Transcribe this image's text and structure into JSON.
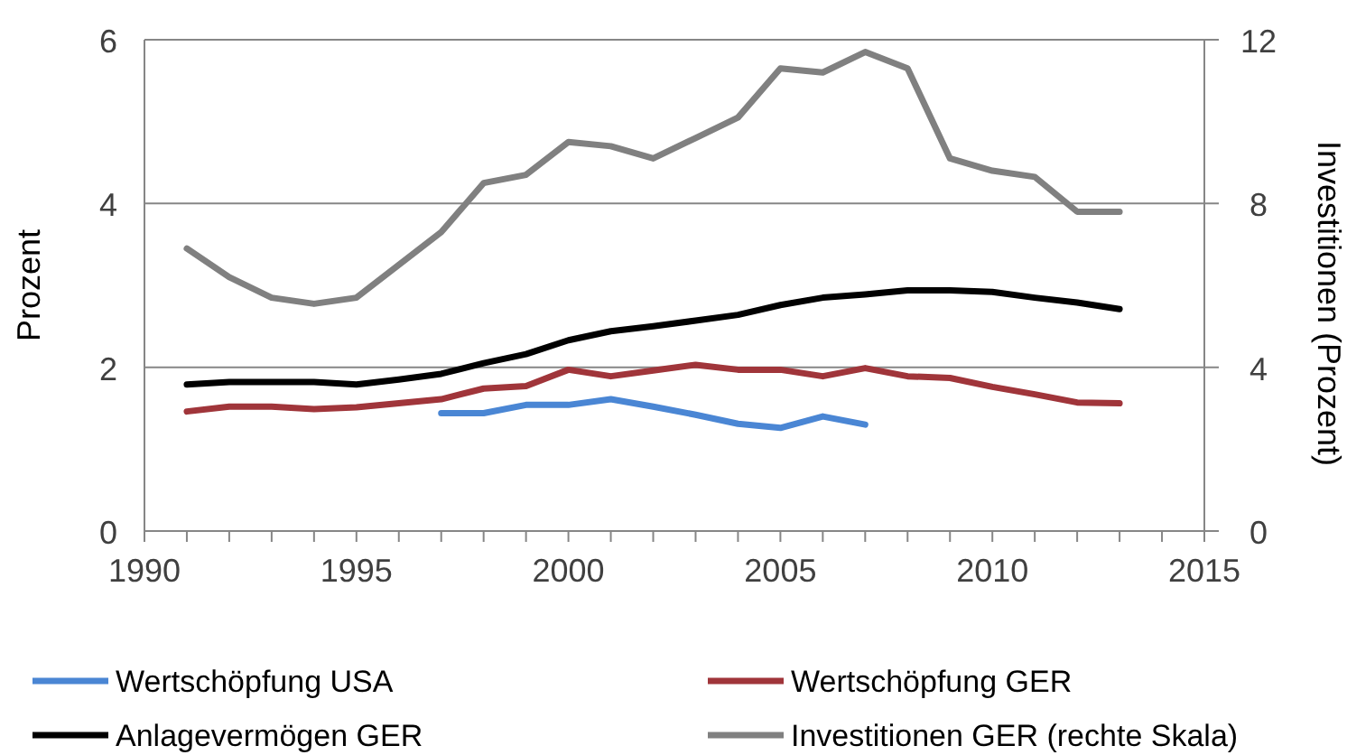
{
  "chart_data": {
    "type": "line",
    "ylabel": "Prozent",
    "y2label": "Investitionen (Prozent)",
    "x": [
      1991,
      1992,
      1993,
      1994,
      1995,
      1996,
      1997,
      1998,
      1999,
      2000,
      2001,
      2002,
      2003,
      2004,
      2005,
      2006,
      2007,
      2008,
      2009,
      2010,
      2011,
      2012,
      2013
    ],
    "xlim": [
      1990,
      2015
    ],
    "xticks": [
      1990,
      {
        "value": 1991,
        "label": null
      },
      {
        "value": 1992,
        "label": null
      },
      {
        "value": 1993,
        "label": null
      },
      {
        "value": 1994,
        "label": null
      },
      1995,
      {
        "value": 1996,
        "label": null
      },
      {
        "value": 1997,
        "label": null
      },
      {
        "value": 1998,
        "label": null
      },
      {
        "value": 1999,
        "label": null
      },
      2000,
      {
        "value": 2001,
        "label": null
      },
      {
        "value": 2002,
        "label": null
      },
      {
        "value": 2003,
        "label": null
      },
      {
        "value": 2004,
        "label": null
      },
      2005,
      {
        "value": 2006,
        "label": null
      },
      {
        "value": 2007,
        "label": null
      },
      {
        "value": 2008,
        "label": null
      },
      {
        "value": 2009,
        "label": null
      },
      2010,
      {
        "value": 2011,
        "label": null
      },
      {
        "value": 2012,
        "label": null
      },
      {
        "value": 2013,
        "label": null
      },
      {
        "value": 2014,
        "label": null
      },
      2015
    ],
    "ylim": [
      0,
      6
    ],
    "yticks": [
      0,
      2,
      4,
      6
    ],
    "y2lim": [
      0,
      12
    ],
    "y2ticks": [
      0,
      4,
      8,
      12
    ],
    "grid": "y",
    "legend": "bottom",
    "marker": "none",
    "line_style": "solid",
    "series": [
      {
        "name": "Wertschöpfung USA",
        "color": "#4a86d4",
        "values": [
          null,
          null,
          null,
          null,
          null,
          null,
          1.44,
          1.44,
          1.54,
          1.54,
          1.61,
          1.52,
          1.42,
          1.31,
          1.26,
          1.4,
          1.3,
          null,
          null,
          null,
          null,
          null,
          null
        ]
      },
      {
        "name": "Wertschöpfung GER",
        "color": "#a0353a",
        "values": [
          1.46,
          1.52,
          1.52,
          1.49,
          1.51,
          1.56,
          1.61,
          1.74,
          1.77,
          1.97,
          1.89,
          1.96,
          2.03,
          1.97,
          1.97,
          1.89,
          1.99,
          1.89,
          1.87,
          1.76,
          1.67,
          1.57,
          1.56
        ]
      },
      {
        "name": "Anlagevermögen GER",
        "color": "#000000",
        "values": [
          1.79,
          1.82,
          1.82,
          1.82,
          1.79,
          1.85,
          1.92,
          2.05,
          2.16,
          2.33,
          2.44,
          2.5,
          2.57,
          2.64,
          2.76,
          2.85,
          2.89,
          2.94,
          2.94,
          2.92,
          2.85,
          2.79,
          2.71
        ]
      },
      {
        "name": "Investitionen GER (rechte Skala)",
        "color": "#808080",
        "axis": "y2",
        "values": [
          6.9,
          6.2,
          5.7,
          5.55,
          5.7,
          6.5,
          7.3,
          8.5,
          8.7,
          9.5,
          9.4,
          9.1,
          9.6,
          10.1,
          11.3,
          11.2,
          11.7,
          11.3,
          9.1,
          8.8,
          8.65,
          7.8,
          7.8
        ]
      }
    ]
  }
}
